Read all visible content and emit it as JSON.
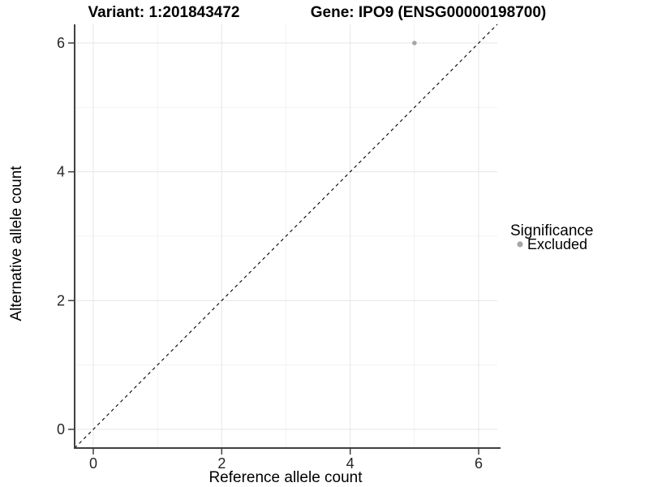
{
  "titles": {
    "variant": "Variant: 1:201843472",
    "gene": "Gene: IPO9 (ENSG00000198700)"
  },
  "legend": {
    "title": "Significance",
    "position": "right",
    "items": [
      {
        "label": "Excluded",
        "color": "#A6A6A6"
      }
    ]
  },
  "colors": {
    "background": "#FFFFFF",
    "axis_line": "#404040",
    "tick_mark": "#404040",
    "grid_major": "#E6E6E6",
    "grid_minor": "#F2F2F2",
    "identity_line": "#000000",
    "point": "#A6A6A6"
  },
  "chart_data": {
    "type": "scatter",
    "title": "Variant: 1:201843472 | Gene: IPO9 (ENSG00000198700)",
    "xlabel": "Reference allele count",
    "ylabel": "Alternative allele count",
    "xlim": [
      -0.29,
      6.29
    ],
    "ylim": [
      -0.29,
      6.29
    ],
    "xticks": [
      0,
      2,
      4,
      6
    ],
    "yticks": [
      0,
      2,
      4,
      6
    ],
    "minor_xticks": [
      1,
      3,
      5
    ],
    "minor_yticks": [
      1,
      3,
      5
    ],
    "grid": true,
    "legend_position": "right",
    "series": [
      {
        "name": "Excluded",
        "color": "#A6A6A6",
        "points": [
          {
            "x": 5,
            "y": 6
          }
        ]
      }
    ],
    "reference_line": {
      "type": "identity",
      "style": "dashed",
      "from": -0.29,
      "to": 6.29,
      "color": "#000000"
    }
  }
}
